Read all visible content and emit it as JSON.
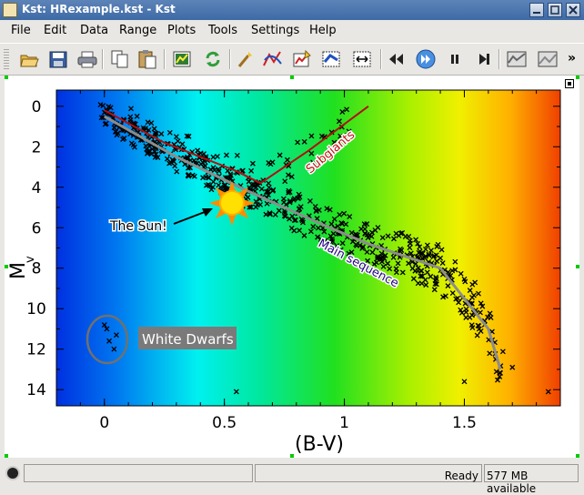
{
  "window": {
    "title": "Kst: HRexample.kst - Kst"
  },
  "menu": [
    "File",
    "Edit",
    "Data",
    "Range",
    "Plots",
    "Tools",
    "Settings",
    "Help"
  ],
  "toolbar_icons": [
    "open-icon",
    "save-icon",
    "print-icon",
    "copy-icon",
    "paste-icon",
    "data-wizard-icon",
    "reload-icon",
    "edit-icon",
    "curve-icon",
    "plugin-icon",
    "layout-icon",
    "zoom-icon",
    "xy-icon",
    "rewind-icon",
    "play-icon",
    "pause-icon",
    "end-icon",
    "graph-icon",
    "layout-grid-icon"
  ],
  "status": {
    "message": "Ready",
    "memory": "577 MB available"
  },
  "annotations": {
    "sun": "The Sun!",
    "subgiants": "Subgiants",
    "main_sequence": "Main sequence",
    "white_dwarfs": "White Dwarfs"
  },
  "colors": {
    "subgiant_line": "#b01010",
    "main_sequence_line": "#8c8c8c",
    "marker": "#000000",
    "titlebar": "#3d6aa6"
  },
  "chart_data": {
    "type": "scatter",
    "xlabel": "(B-V)",
    "ylabel": "Mv",
    "xlim": [
      -0.2,
      1.9
    ],
    "ylim": [
      14.8,
      -0.8
    ],
    "y_inverted": true,
    "x_ticks": [
      "0",
      "0.5",
      "1",
      "1.5"
    ],
    "y_ticks": [
      "0",
      "2",
      "4",
      "6",
      "8",
      "10",
      "12",
      "14"
    ],
    "background": "spectral color gradient from blue (left) to red (right)",
    "series": [
      {
        "name": "Main sequence",
        "x": [
          0.0,
          0.3,
          0.6,
          0.9,
          1.1,
          1.4,
          1.5,
          1.6,
          1.65
        ],
        "y": [
          0.5,
          2.5,
          4.2,
          5.8,
          6.8,
          8.0,
          9.5,
          11.0,
          13.0
        ]
      },
      {
        "name": "Subgiants",
        "x": [
          0.0,
          0.25,
          0.55,
          0.65,
          0.85,
          1.1
        ],
        "y": [
          0.2,
          1.8,
          3.2,
          3.8,
          2.2,
          0.0
        ]
      }
    ]
  }
}
